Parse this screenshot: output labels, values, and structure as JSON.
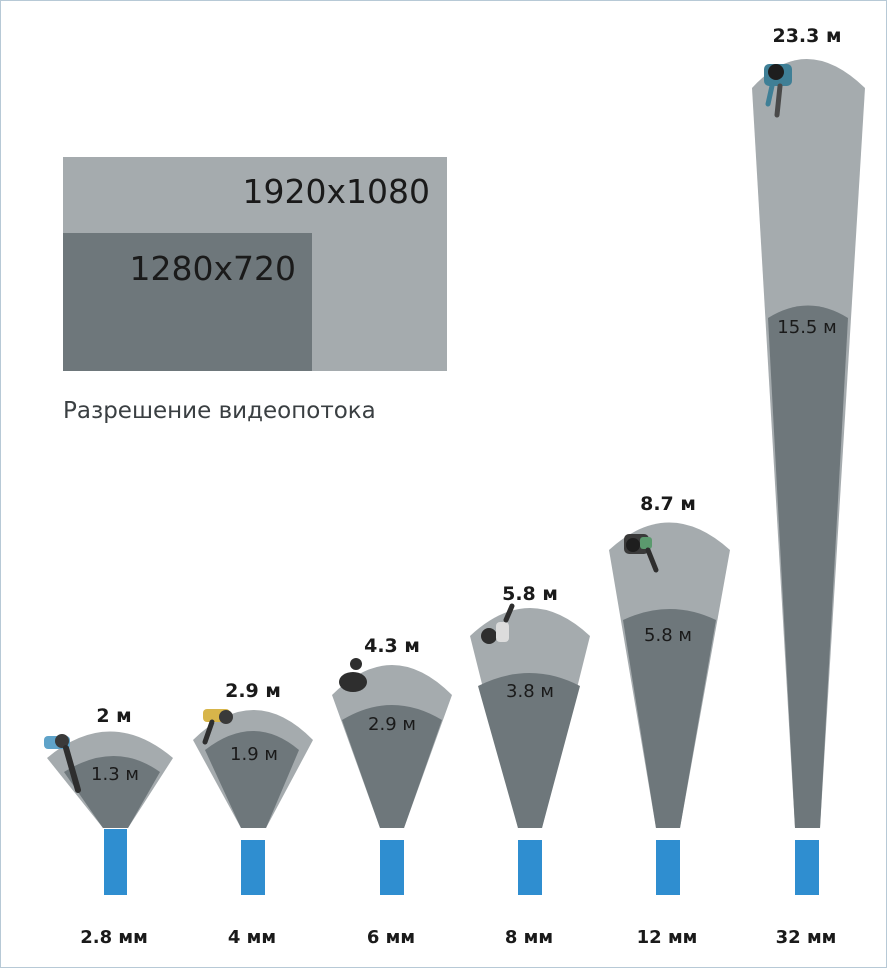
{
  "legend": {
    "high_resolution": "1920x1080",
    "low_resolution": "1280x720",
    "caption": "Разрешение видеопотока"
  },
  "colors": {
    "far_zone": "#a5abae",
    "near_zone": "#6e777b",
    "camera": "#2f8ed0",
    "text": "#1a1a1a"
  },
  "lenses": [
    {
      "focal": "2.8 мм",
      "width_1080": "2 м",
      "width_720": "1.3 м"
    },
    {
      "focal": "4 мм",
      "width_1080": "2.9 м",
      "width_720": "1.9 м"
    },
    {
      "focal": "6 мм",
      "width_1080": "4.3 м",
      "width_720": "2.9 м"
    },
    {
      "focal": "8 мм",
      "width_1080": "5.8 м",
      "width_720": "3.8 м"
    },
    {
      "focal": "12 мм",
      "width_1080": "8.7 м",
      "width_720": "5.8 м"
    },
    {
      "focal": "32 мм",
      "width_1080": "23.3 м",
      "width_720": "15.5 м"
    }
  ]
}
